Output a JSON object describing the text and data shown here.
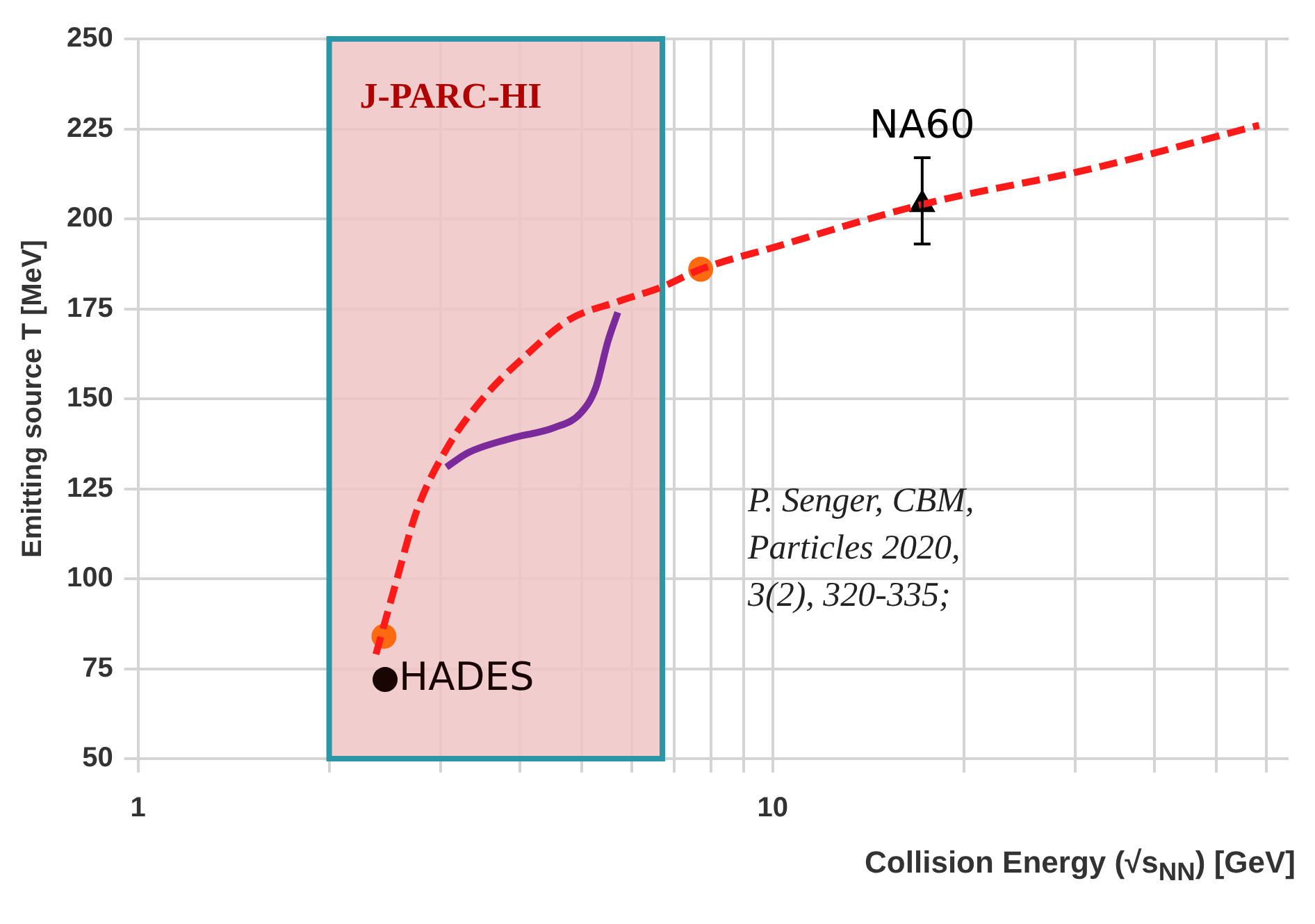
{
  "chart_data": {
    "type": "line",
    "xlabel": "Collision Energy (√s$_{NN}$)  [GeV]",
    "ylabel": "Emitting source T [MeV]",
    "log": "x",
    "xlim": [
      1,
      65
    ],
    "ylim": [
      50,
      250
    ],
    "xticks": [
      1,
      {
        "value": 2,
        "label": null
      },
      {
        "value": 3,
        "label": null
      },
      {
        "value": 4,
        "label": null
      },
      {
        "value": 5,
        "label": null
      },
      {
        "value": 6,
        "label": null
      },
      {
        "value": 7,
        "label": null
      },
      {
        "value": 8,
        "label": null
      },
      {
        "value": 9,
        "label": null
      },
      10,
      {
        "value": 20,
        "label": null
      },
      {
        "value": 30,
        "label": null
      },
      {
        "value": 40,
        "label": null
      },
      {
        "value": 50,
        "label": null
      },
      {
        "value": 60,
        "label": null
      }
    ],
    "yticks": [
      50,
      75,
      100,
      125,
      150,
      175,
      200,
      225,
      250
    ],
    "grid": true,
    "legend": false,
    "bands": [
      {
        "axis": "x",
        "from": 2,
        "to": 6.7,
        "label": "J-PARC-HI",
        "color": "#eec4c4"
      }
    ],
    "series": [
      {
        "color": "#ff1a1a",
        "line_style": "dashed",
        "marker": "none",
        "x": [
          2.37,
          2.54,
          2.75,
          3.06,
          3.49,
          4.08,
          4.78,
          5.7,
          6.67,
          7.7,
          10,
          17.2,
          31.9,
          58.4
        ],
        "values": [
          79,
          98,
          119,
          136,
          150,
          162,
          172,
          177,
          181,
          186,
          192,
          204,
          214,
          226
        ]
      },
      {
        "color": "#7a2a9a",
        "line_style": "solid",
        "marker": "none",
        "x": [
          3.06,
          3.31,
          3.87,
          4.53,
          4.98,
          5.26,
          5.5,
          5.7
        ],
        "values": [
          131,
          135,
          139,
          142,
          146,
          153,
          166,
          174
        ]
      },
      {
        "type": "scatter",
        "color": "#ff6a10",
        "marker": "circle",
        "x": [
          2.44,
          7.7
        ],
        "values": [
          84,
          186
        ]
      },
      {
        "type": "scatter",
        "name": "HADES",
        "color": "#1a0505",
        "marker": "circle",
        "x": [
          2.45
        ],
        "values": [
          72
        ]
      },
      {
        "type": "scatter",
        "name": "NA60",
        "color": "#000000",
        "marker": "triangle",
        "x": [
          17.2
        ],
        "values": [
          204
        ],
        "errors": [
          [
            193,
            217
          ]
        ]
      }
    ],
    "annotations": [
      "P. Senger, CBM,\nParticles 2020,\n3(2), 320-335;"
    ]
  }
}
